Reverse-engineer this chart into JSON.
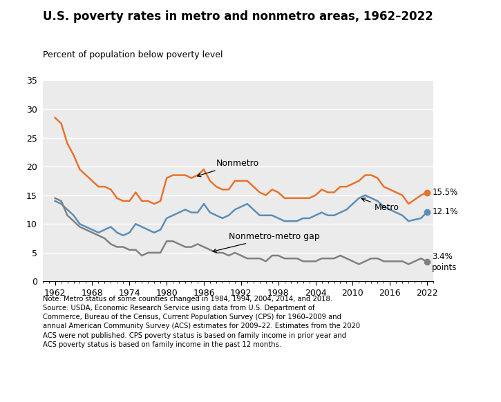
{
  "title": "U.S. poverty rates in metro and nonmetro areas, 1962–2022",
  "ylabel": "Percent of population below poverty level",
  "note": "Note: Metro status of some counties changed in 1984, 1994, 2004, 2014, and 2018.\nSource: USDA, Economic Research Service using data from U.S. Department of\nCommerce, Bureau of the Census, Current Population Survey (CPS) for 1960–2009 and\nannual American Community Survey (ACS) estimates for 2009–22. Estimates from the 2020\nACS were not published. CPS poverty status is based on family income in prior year and\nACS poverty status is based on family income in the past 12 months.",
  "nonmetro_color": "#E8722A",
  "metro_color": "#5B8DB8",
  "gap_color": "#808080",
  "bg_color": "#EBEBEB",
  "ylim": [
    0,
    35
  ],
  "yticks": [
    0,
    5,
    10,
    15,
    20,
    25,
    30,
    35
  ],
  "xticks": [
    1962,
    1968,
    1974,
    1980,
    1986,
    1992,
    1998,
    2004,
    2010,
    2016,
    2022
  ],
  "nonmetro_years": [
    1962,
    1963,
    1964,
    1965,
    1966,
    1967,
    1968,
    1969,
    1970,
    1971,
    1972,
    1973,
    1974,
    1975,
    1976,
    1977,
    1978,
    1979,
    1980,
    1981,
    1982,
    1983,
    1984,
    1985,
    1986,
    1987,
    1988,
    1989,
    1990,
    1991,
    1992,
    1993,
    1994,
    1995,
    1996,
    1997,
    1998,
    1999,
    2000,
    2001,
    2002,
    2003,
    2004,
    2005,
    2006,
    2007,
    2008,
    2009,
    2010,
    2011,
    2012,
    2013,
    2014,
    2015,
    2016,
    2017,
    2018,
    2019,
    2021,
    2022
  ],
  "nonmetro_values": [
    28.5,
    27.5,
    24.0,
    22.0,
    19.5,
    18.5,
    17.5,
    16.5,
    16.5,
    16.0,
    14.5,
    14.0,
    14.0,
    15.5,
    14.0,
    14.0,
    13.5,
    14.0,
    18.0,
    18.5,
    18.5,
    18.5,
    18.0,
    18.5,
    19.5,
    17.5,
    16.5,
    16.0,
    16.0,
    17.5,
    17.5,
    17.5,
    16.5,
    15.5,
    15.0,
    16.0,
    15.5,
    14.5,
    14.5,
    14.5,
    14.5,
    14.5,
    15.0,
    16.0,
    15.5,
    15.5,
    16.5,
    16.5,
    17.0,
    17.5,
    18.5,
    18.5,
    18.0,
    16.5,
    16.0,
    15.5,
    15.0,
    13.5,
    15.0,
    15.5
  ],
  "metro_years": [
    1962,
    1963,
    1964,
    1965,
    1966,
    1967,
    1968,
    1969,
    1970,
    1971,
    1972,
    1973,
    1974,
    1975,
    1976,
    1977,
    1978,
    1979,
    1980,
    1981,
    1982,
    1983,
    1984,
    1985,
    1986,
    1987,
    1988,
    1989,
    1990,
    1991,
    1992,
    1993,
    1994,
    1995,
    1996,
    1997,
    1998,
    1999,
    2000,
    2001,
    2002,
    2003,
    2004,
    2005,
    2006,
    2007,
    2008,
    2009,
    2010,
    2011,
    2012,
    2013,
    2014,
    2015,
    2016,
    2017,
    2018,
    2019,
    2021,
    2022
  ],
  "metro_values": [
    14.0,
    13.5,
    12.5,
    11.5,
    10.0,
    9.5,
    9.0,
    8.5,
    9.0,
    9.5,
    8.5,
    8.0,
    8.5,
    10.0,
    9.5,
    9.0,
    8.5,
    9.0,
    11.0,
    11.5,
    12.0,
    12.5,
    12.0,
    12.0,
    13.5,
    12.0,
    11.5,
    11.0,
    11.5,
    12.5,
    13.0,
    13.5,
    12.5,
    11.5,
    11.5,
    11.5,
    11.0,
    10.5,
    10.5,
    10.5,
    11.0,
    11.0,
    11.5,
    12.0,
    11.5,
    11.5,
    12.0,
    12.5,
    13.5,
    14.5,
    15.0,
    14.5,
    14.0,
    13.0,
    12.5,
    12.0,
    11.5,
    10.5,
    11.0,
    12.1
  ],
  "gap_years": [
    1962,
    1963,
    1964,
    1965,
    1966,
    1967,
    1968,
    1969,
    1970,
    1971,
    1972,
    1973,
    1974,
    1975,
    1976,
    1977,
    1978,
    1979,
    1980,
    1981,
    1982,
    1983,
    1984,
    1985,
    1986,
    1987,
    1988,
    1989,
    1990,
    1991,
    1992,
    1993,
    1994,
    1995,
    1996,
    1997,
    1998,
    1999,
    2000,
    2001,
    2002,
    2003,
    2004,
    2005,
    2006,
    2007,
    2008,
    2009,
    2010,
    2011,
    2012,
    2013,
    2014,
    2015,
    2016,
    2017,
    2018,
    2019,
    2021,
    2022
  ],
  "gap_values": [
    14.5,
    14.0,
    11.5,
    10.5,
    9.5,
    9.0,
    8.5,
    8.0,
    7.5,
    6.5,
    6.0,
    6.0,
    5.5,
    5.5,
    4.5,
    5.0,
    5.0,
    5.0,
    7.0,
    7.0,
    6.5,
    6.0,
    6.0,
    6.5,
    6.0,
    5.5,
    5.0,
    5.0,
    4.5,
    5.0,
    4.5,
    4.0,
    4.0,
    4.0,
    3.5,
    4.5,
    4.5,
    4.0,
    4.0,
    4.0,
    3.5,
    3.5,
    3.5,
    4.0,
    4.0,
    4.0,
    4.5,
    4.0,
    3.5,
    3.0,
    3.5,
    4.0,
    4.0,
    3.5,
    3.5,
    3.5,
    3.5,
    3.0,
    4.0,
    3.4
  ]
}
